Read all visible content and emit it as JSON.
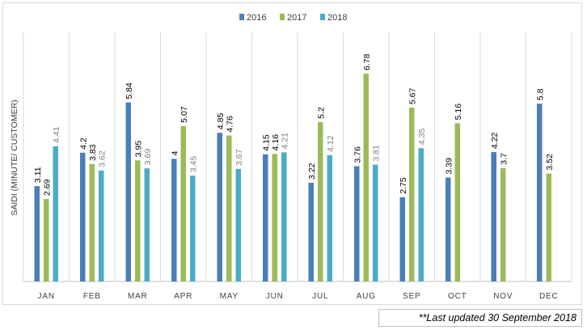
{
  "chart_data": {
    "type": "bar",
    "title": "",
    "xlabel": "",
    "ylabel": "SAIDI (MINUTE/ CUSTOMER)",
    "ylim": [
      0,
      7.5
    ],
    "grid": "vertical",
    "legend_position": "top-center",
    "categories": [
      "JAN",
      "FEB",
      "MAR",
      "APR",
      "MAY",
      "JUN",
      "JUL",
      "AUG",
      "SEP",
      "OCT",
      "NOV",
      "DEC"
    ],
    "series": [
      {
        "name": "2016",
        "color": "#4a7ebb",
        "label_color": "#000000",
        "values": [
          3.11,
          4.2,
          5.84,
          4,
          4.85,
          4.15,
          3.22,
          3.76,
          2.75,
          3.39,
          4.22,
          5.8
        ]
      },
      {
        "name": "2017",
        "color": "#9bbb59",
        "label_color": "#000000",
        "values": [
          2.69,
          3.83,
          3.95,
          5.07,
          4.76,
          4.16,
          5.2,
          6.78,
          5.67,
          5.16,
          3.7,
          3.52
        ]
      },
      {
        "name": "2018",
        "color": "#4bacc6",
        "label_color": "#7f7f7f",
        "values": [
          4.41,
          3.62,
          3.69,
          3.45,
          3.67,
          4.21,
          4.12,
          3.81,
          4.35,
          null,
          null,
          null
        ]
      }
    ]
  },
  "footnote": "**Last updated 30 September 2018"
}
